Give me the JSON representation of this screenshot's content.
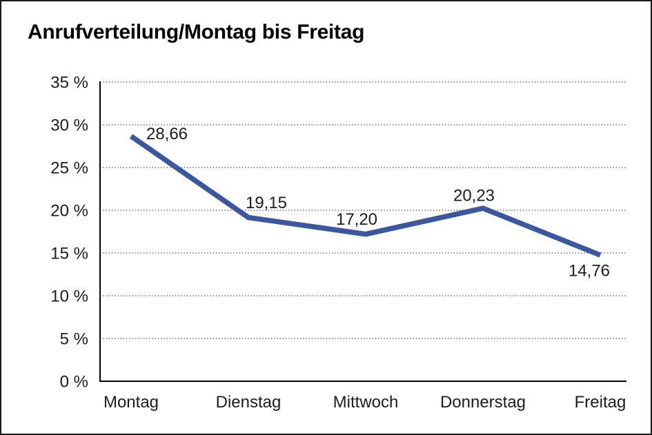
{
  "chart_data": {
    "type": "line",
    "title": "Anrufverteilung/Montag bis Freitag",
    "categories": [
      "Montag",
      "Dienstag",
      "Mittwoch",
      "Donnerstag",
      "Freitag"
    ],
    "series": [
      {
        "name": "Anrufverteilung",
        "values": [
          28.66,
          19.15,
          17.2,
          20.23,
          14.76
        ]
      }
    ],
    "data_labels": [
      "28,66",
      "19,15",
      "17,20",
      "20,23",
      "14,76"
    ],
    "y_ticks": [
      {
        "value": 35,
        "label": "35 %"
      },
      {
        "value": 30,
        "label": "30 %"
      },
      {
        "value": 25,
        "label": "25 %"
      },
      {
        "value": 20,
        "label": "20 %"
      },
      {
        "value": 15,
        "label": "15 %"
      },
      {
        "value": 10,
        "label": "10 %"
      },
      {
        "value": 5,
        "label": "5 %"
      },
      {
        "value": 0,
        "label": "0 %"
      }
    ],
    "ylim": [
      0,
      35
    ],
    "y_tick_step": 5,
    "xlabel": "",
    "ylabel": "",
    "grid": "horizontal-dotted",
    "legend": "none",
    "colors": {
      "line": "#3B579F",
      "axis": "#000000",
      "gridline": "#444444",
      "text": "#1c1c1c"
    }
  }
}
